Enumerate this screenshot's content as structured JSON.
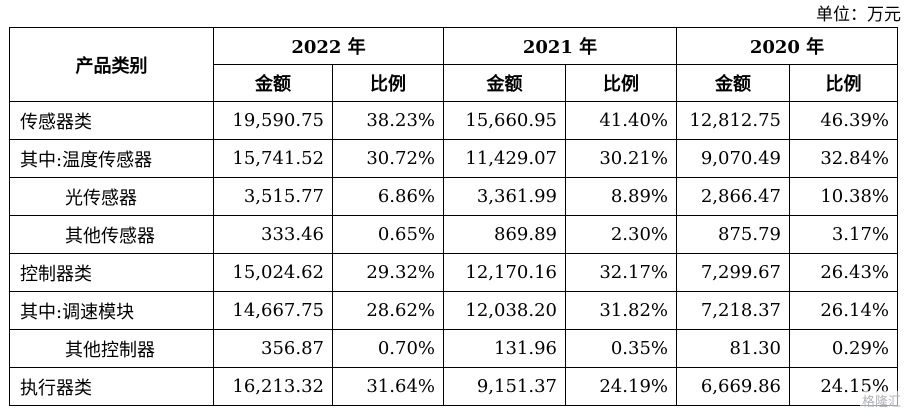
{
  "unit": "单位：万元",
  "header": {
    "category": "产品类别",
    "years": [
      "2022 年",
      "2021 年",
      "2020 年"
    ],
    "amount": "金额",
    "ratio": "比例"
  },
  "rows": [
    {
      "label": "传感器类",
      "indent": false,
      "cells": [
        "19,590.75",
        "38.23%",
        "15,660.95",
        "41.40%",
        "12,812.75",
        "46.39%"
      ]
    },
    {
      "label": "其中:温度传感器",
      "indent": false,
      "cells": [
        "15,741.52",
        "30.72%",
        "11,429.07",
        "30.21%",
        "9,070.49",
        "32.84%"
      ]
    },
    {
      "label": "光传感器",
      "indent": true,
      "cells": [
        "3,515.77",
        "6.86%",
        "3,361.99",
        "8.89%",
        "2,866.47",
        "10.38%"
      ]
    },
    {
      "label": "其他传感器",
      "indent": true,
      "cells": [
        "333.46",
        "0.65%",
        "869.89",
        "2.30%",
        "875.79",
        "3.17%"
      ]
    },
    {
      "label": "控制器类",
      "indent": false,
      "cells": [
        "15,024.62",
        "29.32%",
        "12,170.16",
        "32.17%",
        "7,299.67",
        "26.43%"
      ]
    },
    {
      "label": "其中:调速模块",
      "indent": false,
      "cells": [
        "14,667.75",
        "28.62%",
        "12,038.20",
        "31.82%",
        "7,218.37",
        "26.14%"
      ]
    },
    {
      "label": "其他控制器",
      "indent": true,
      "cells": [
        "356.87",
        "0.70%",
        "131.96",
        "0.35%",
        "81.30",
        "0.29%"
      ]
    },
    {
      "label": "执行器类",
      "indent": false,
      "cells": [
        "16,213.32",
        "31.64%",
        "9,151.37",
        "24.19%",
        "6,669.86",
        "24.15%"
      ]
    }
  ],
  "watermark": "格隆汇"
}
